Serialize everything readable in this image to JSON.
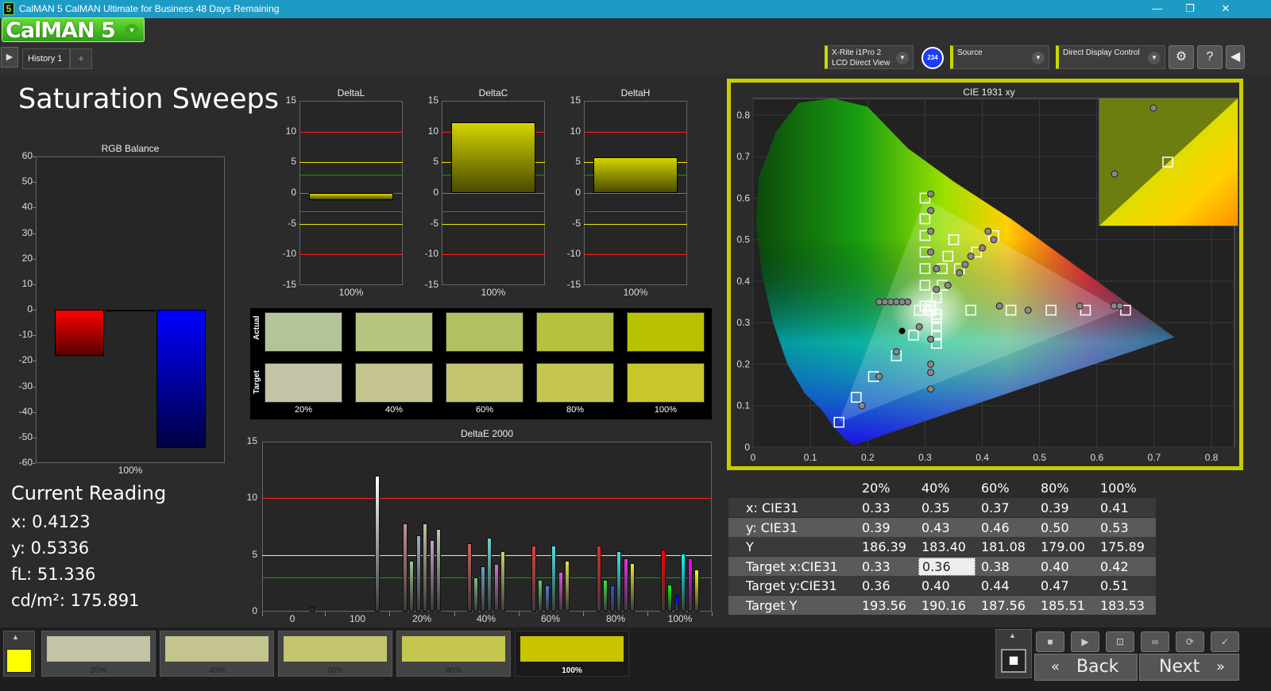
{
  "window": {
    "title": "CalMAN 5 CalMAN Ultimate for Business 48 Days Remaining",
    "app_icon": "5",
    "min": "—",
    "max": "❐",
    "close": "✕"
  },
  "logo": {
    "text": "CalMAN 5",
    "dropdown": "▾"
  },
  "tabs": {
    "history": "History 1",
    "add": "+",
    "back_arrow": "▶"
  },
  "devices": {
    "meter_line1": "X-Rite i1Pro 2",
    "meter_line2": "LCD Direct View",
    "badge": "234",
    "source": "Source",
    "display": "Direct Display Control"
  },
  "toolbar_icons": {
    "settings": "⚙",
    "help": "?",
    "collapse": "◀"
  },
  "page_title": "Saturation Sweeps",
  "rgb_balance": {
    "title": "RGB Balance",
    "yticks": [
      "60",
      "50",
      "40",
      "30",
      "20",
      "10",
      "0",
      "-10",
      "-20",
      "-30",
      "-40",
      "-50",
      "-60"
    ],
    "xlabel": "100%"
  },
  "delta_charts": {
    "yticks": [
      "15",
      "10",
      "5",
      "0",
      "-5",
      "-10",
      "-15"
    ],
    "xlabel": "100%",
    "titles": {
      "l": "DeltaL",
      "c": "DeltaC",
      "h": "DeltaH"
    }
  },
  "swatches": {
    "actual_label": "Actual",
    "target_label": "Target",
    "labels": [
      "20%",
      "40%",
      "60%",
      "80%",
      "100%"
    ],
    "actual_colors": [
      "#b5c496",
      "#b6c57e",
      "#b4c160",
      "#b6c23c",
      "#b9c200"
    ],
    "target_colors": [
      "#c4c3a6",
      "#c4c48e",
      "#c4c370",
      "#c5c64f",
      "#c8c62a"
    ]
  },
  "deltae": {
    "title": "DeltaE 2000",
    "yticks": [
      "15",
      "10",
      "5",
      "0"
    ],
    "xticks": [
      "0",
      "100",
      "20%",
      "40%",
      "60%",
      "80%",
      "100%"
    ]
  },
  "current_reading": {
    "heading": "Current Reading",
    "x": "x: 0.4123",
    "y": "y: 0.5336",
    "fl": "fL: 51.336",
    "cdm2": "cd/m²: 175.891"
  },
  "cie": {
    "title": "CIE 1931 xy",
    "yticks": [
      "0.8",
      "0.7",
      "0.6",
      "0.5",
      "0.4",
      "0.3",
      "0.2",
      "0.1",
      "0"
    ],
    "xticks": [
      "0",
      "0.1",
      "0.2",
      "0.3",
      "0.4",
      "0.5",
      "0.6",
      "0.7",
      "0.8"
    ]
  },
  "table": {
    "headers": [
      "20%",
      "40%",
      "60%",
      "80%",
      "100%"
    ],
    "rows": [
      {
        "label": "x: CIE31",
        "values": [
          "0.33",
          "0.35",
          "0.37",
          "0.39",
          "0.41"
        ]
      },
      {
        "label": "y: CIE31",
        "values": [
          "0.39",
          "0.43",
          "0.46",
          "0.50",
          "0.53"
        ]
      },
      {
        "label": "Y",
        "values": [
          "186.39",
          "183.40",
          "181.08",
          "179.00",
          "175.89"
        ]
      },
      {
        "label": "Target x:CIE31",
        "values": [
          "0.33",
          "0.36",
          "0.38",
          "0.40",
          "0.42"
        ]
      },
      {
        "label": "Target y:CIE31",
        "values": [
          "0.36",
          "0.40",
          "0.44",
          "0.47",
          "0.51"
        ]
      },
      {
        "label": "Target Y",
        "values": [
          "193.56",
          "190.16",
          "187.56",
          "185.51",
          "183.53"
        ]
      }
    ]
  },
  "bottom": {
    "swatch_labels": [
      "20%",
      "40%",
      "60%",
      "80%",
      "100%"
    ],
    "swatch_colors": [
      "#c4c3a6",
      "#c4c48e",
      "#c4c370",
      "#c5c64f",
      "#c8c62a"
    ],
    "current_color": "#ffff00",
    "back": "Back",
    "next": "Next",
    "icons": {
      "stop": "■",
      "play": "▶",
      "step": "⊡",
      "loop": "∞",
      "refresh": "⟳",
      "check": "✓",
      "up": "▲",
      "record": "◼",
      "prev": "«",
      "fwd": "»"
    }
  },
  "chart_data": [
    {
      "type": "bar",
      "title": "RGB Balance",
      "categories": [
        "100%"
      ],
      "series": [
        {
          "name": "Red",
          "values": [
            -18
          ]
        },
        {
          "name": "Green",
          "values": [
            0
          ]
        },
        {
          "name": "Blue",
          "values": [
            -54
          ]
        }
      ],
      "ylim": [
        -60,
        60
      ],
      "colors": [
        "#ff0000",
        "#00ff00",
        "#0000ff"
      ]
    },
    {
      "type": "bar",
      "title": "DeltaL",
      "categories": [
        "100%"
      ],
      "values": [
        -1.2
      ],
      "ylim": [
        -15,
        15
      ]
    },
    {
      "type": "bar",
      "title": "DeltaC",
      "categories": [
        "100%"
      ],
      "values": [
        11.5
      ],
      "ylim": [
        -15,
        15
      ]
    },
    {
      "type": "bar",
      "title": "DeltaH",
      "categories": [
        "100%"
      ],
      "values": [
        5.8
      ],
      "ylim": [
        -15,
        15
      ]
    },
    {
      "type": "bar",
      "title": "DeltaE 2000",
      "ylim": [
        0,
        15
      ],
      "reference_lines": [
        {
          "value": 10,
          "color": "#ff2020"
        },
        {
          "value": 5,
          "color": "#ffff00"
        },
        {
          "value": 3,
          "color": "#00aa00"
        }
      ],
      "groups": [
        {
          "label": "0",
          "values": [
            0.4
          ],
          "colors": [
            "#222222"
          ]
        },
        {
          "label": "100",
          "values": [
            12
          ],
          "colors": [
            "#ffffff"
          ]
        },
        {
          "label": "20%",
          "values": [
            7.8,
            4.5,
            6.7,
            7.8,
            6.3,
            7.3
          ],
          "colors": [
            "#c89090",
            "#a0c090",
            "#90b0c8",
            "#c0c0a0",
            "#c8a0c8",
            "#b8c8b0"
          ]
        },
        {
          "label": "40%",
          "values": [
            6.0,
            3.0,
            4.0,
            6.5,
            4.2,
            5.3
          ],
          "colors": [
            "#d06060",
            "#80c080",
            "#70a0d0",
            "#70d0d0",
            "#d070d0",
            "#d0d070"
          ]
        },
        {
          "label": "60%",
          "values": [
            5.8,
            2.8,
            2.3,
            5.8,
            3.5,
            4.5
          ],
          "colors": [
            "#e04040",
            "#60d060",
            "#5080e0",
            "#50e0e0",
            "#e050e0",
            "#e0e050"
          ]
        },
        {
          "label": "80%",
          "values": [
            5.8,
            2.8,
            2.3,
            5.3,
            4.7,
            4.3
          ],
          "colors": [
            "#e82828",
            "#40e040",
            "#3050f0",
            "#30e8e8",
            "#e830e8",
            "#e8e830"
          ]
        },
        {
          "label": "100%",
          "values": [
            5.5,
            2.4,
            1.5,
            5.1,
            4.7,
            3.7
          ],
          "colors": [
            "#ff0000",
            "#00ff00",
            "#0000ff",
            "#00ffff",
            "#ff00ff",
            "#ffff00"
          ]
        }
      ]
    },
    {
      "type": "scatter",
      "title": "CIE 1931 xy",
      "xlim": [
        0,
        0.8
      ],
      "ylim": [
        0,
        0.8
      ],
      "gamut": [
        [
          0.64,
          0.33
        ],
        [
          0.3,
          0.6
        ],
        [
          0.15,
          0.06
        ]
      ],
      "target_points": [
        [
          0.15,
          0.06
        ],
        [
          0.18,
          0.12
        ],
        [
          0.21,
          0.17
        ],
        [
          0.25,
          0.22
        ],
        [
          0.28,
          0.27
        ],
        [
          0.29,
          0.33
        ],
        [
          0.31,
          0.34
        ],
        [
          0.32,
          0.36
        ],
        [
          0.33,
          0.39
        ],
        [
          0.33,
          0.43
        ],
        [
          0.34,
          0.46
        ],
        [
          0.35,
          0.5
        ],
        [
          0.3,
          0.6
        ],
        [
          0.3,
          0.55
        ],
        [
          0.3,
          0.51
        ],
        [
          0.3,
          0.47
        ],
        [
          0.3,
          0.43
        ],
        [
          0.3,
          0.39
        ],
        [
          0.3,
          0.34
        ],
        [
          0.31,
          0.33
        ],
        [
          0.32,
          0.32
        ],
        [
          0.32,
          0.31
        ],
        [
          0.32,
          0.29
        ],
        [
          0.32,
          0.27
        ],
        [
          0.32,
          0.25
        ],
        [
          0.38,
          0.33
        ],
        [
          0.45,
          0.33
        ],
        [
          0.52,
          0.33
        ],
        [
          0.58,
          0.33
        ],
        [
          0.65,
          0.33
        ],
        [
          0.42,
          0.51
        ],
        [
          0.36,
          0.43
        ],
        [
          0.39,
          0.47
        ]
      ],
      "actual_points": [
        [
          0.27,
          0.35
        ],
        [
          0.26,
          0.35
        ],
        [
          0.25,
          0.35
        ],
        [
          0.24,
          0.35
        ],
        [
          0.23,
          0.35
        ],
        [
          0.22,
          0.35
        ],
        [
          0.31,
          0.61
        ],
        [
          0.31,
          0.57
        ],
        [
          0.31,
          0.52
        ],
        [
          0.31,
          0.47
        ],
        [
          0.32,
          0.43
        ],
        [
          0.32,
          0.38
        ],
        [
          0.34,
          0.39
        ],
        [
          0.36,
          0.42
        ],
        [
          0.37,
          0.44
        ],
        [
          0.38,
          0.46
        ],
        [
          0.4,
          0.48
        ],
        [
          0.42,
          0.5
        ],
        [
          0.41,
          0.52
        ],
        [
          0.31,
          0.26
        ],
        [
          0.31,
          0.2
        ],
        [
          0.31,
          0.18
        ],
        [
          0.31,
          0.14
        ],
        [
          0.29,
          0.29
        ],
        [
          0.25,
          0.23
        ],
        [
          0.22,
          0.17
        ],
        [
          0.19,
          0.1
        ],
        [
          0.43,
          0.34
        ],
        [
          0.48,
          0.33
        ],
        [
          0.57,
          0.34
        ],
        [
          0.63,
          0.34
        ],
        [
          0.64,
          0.34
        ]
      ],
      "current": [
        0.4123,
        0.5336
      ],
      "white": [
        0.26,
        0.28
      ]
    }
  ]
}
